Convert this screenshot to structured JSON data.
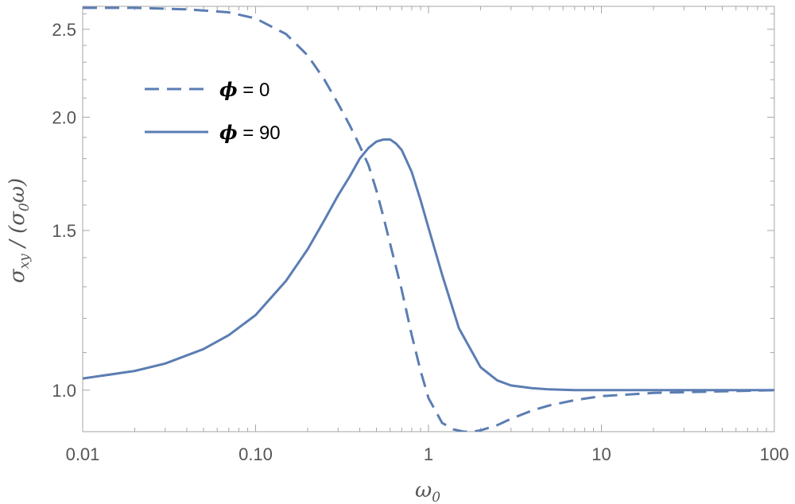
{
  "chart_data": {
    "type": "line",
    "xscale": "log",
    "yscale": "log",
    "xlim": [
      0.01,
      100
    ],
    "ylim": [
      0.9,
      2.65
    ],
    "xticks": [
      0.01,
      0.1,
      1,
      10,
      100
    ],
    "xtick_labels": [
      "0.01",
      "0.10",
      "1",
      "10",
      "100"
    ],
    "yticks": [
      1.0,
      1.5,
      2.0,
      2.5
    ],
    "ytick_labels": [
      "1.0",
      "1.5",
      "2.0",
      "2.5"
    ],
    "xlabel": {
      "base": "ω",
      "sub": "0"
    },
    "ylabel": {
      "parts": [
        "σ",
        "xy",
        " / (σ",
        "0",
        "ω)"
      ]
    },
    "legend_position": "top-left",
    "grid": false,
    "series": [
      {
        "name": "ϕ = 0",
        "style": "dashed",
        "color": "#5b7db3",
        "x": [
          0.01,
          0.02,
          0.04,
          0.07,
          0.1,
          0.15,
          0.2,
          0.25,
          0.3,
          0.35,
          0.4,
          0.45,
          0.5,
          0.55,
          0.6,
          0.7,
          0.8,
          0.9,
          1.0,
          1.2,
          1.4,
          1.6,
          1.8,
          2.0,
          2.5,
          3.0,
          4.0,
          5.0,
          7.0,
          10.0,
          20.0,
          50.0,
          100.0
        ],
        "y": [
          2.64,
          2.64,
          2.63,
          2.61,
          2.57,
          2.47,
          2.34,
          2.2,
          2.07,
          1.96,
          1.86,
          1.77,
          1.66,
          1.55,
          1.45,
          1.29,
          1.15,
          1.05,
          0.98,
          0.92,
          0.905,
          0.9,
          0.9,
          0.903,
          0.915,
          0.93,
          0.95,
          0.962,
          0.975,
          0.985,
          0.993,
          0.997,
          1.0
        ]
      },
      {
        "name": "ϕ = 90",
        "style": "solid",
        "color": "#5b7db3",
        "x": [
          0.01,
          0.02,
          0.03,
          0.05,
          0.07,
          0.1,
          0.15,
          0.2,
          0.25,
          0.3,
          0.35,
          0.4,
          0.45,
          0.5,
          0.55,
          0.6,
          0.65,
          0.7,
          0.8,
          0.9,
          1.0,
          1.2,
          1.5,
          2.0,
          2.5,
          3.0,
          4.0,
          5.0,
          7.0,
          10.0,
          20.0,
          50.0,
          100.0
        ],
        "y": [
          1.03,
          1.05,
          1.07,
          1.11,
          1.15,
          1.21,
          1.32,
          1.43,
          1.54,
          1.64,
          1.72,
          1.8,
          1.85,
          1.88,
          1.89,
          1.89,
          1.87,
          1.84,
          1.74,
          1.62,
          1.51,
          1.34,
          1.17,
          1.06,
          1.025,
          1.012,
          1.005,
          1.002,
          1.0,
          1.0,
          1.0,
          1.0,
          1.0
        ]
      }
    ]
  }
}
